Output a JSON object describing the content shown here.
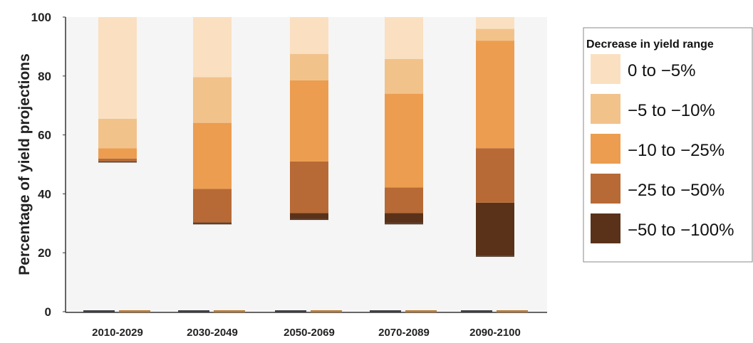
{
  "chart_data": {
    "type": "bar",
    "stacked": true,
    "ylabel": "Percentage of yield projections",
    "xlabel": "",
    "ylim": [
      0,
      100
    ],
    "yticks": [
      0,
      20,
      40,
      60,
      80,
      100
    ],
    "grid": false,
    "legend_position": "right",
    "legend_title": "Decrease in yield range",
    "categories": [
      "2010-2029",
      "2030-2049",
      "2050-2069",
      "2070-2089",
      "2090-2100"
    ],
    "series": [
      {
        "name": "−50 to −100%",
        "color": "#5a3219",
        "values": [
          0,
          0.3,
          2,
          3.5,
          18
        ]
      },
      {
        "name": "−25 to −50%",
        "color": "#b76a35",
        "values": [
          1,
          11.4,
          17.5,
          8.7,
          18.5
        ]
      },
      {
        "name": "−10 to −25%",
        "color": "#ec9d4f",
        "values": [
          3.5,
          22.4,
          27.5,
          31.8,
          36.5
        ]
      },
      {
        "name": "−5 to −10%",
        "color": "#f2c28b",
        "values": [
          10,
          15.5,
          9,
          11.8,
          4
        ]
      },
      {
        "name": "0 to −5%",
        "color": "#fae0c0",
        "values": [
          34.5,
          20.4,
          12.5,
          14.2,
          4
        ]
      }
    ]
  }
}
